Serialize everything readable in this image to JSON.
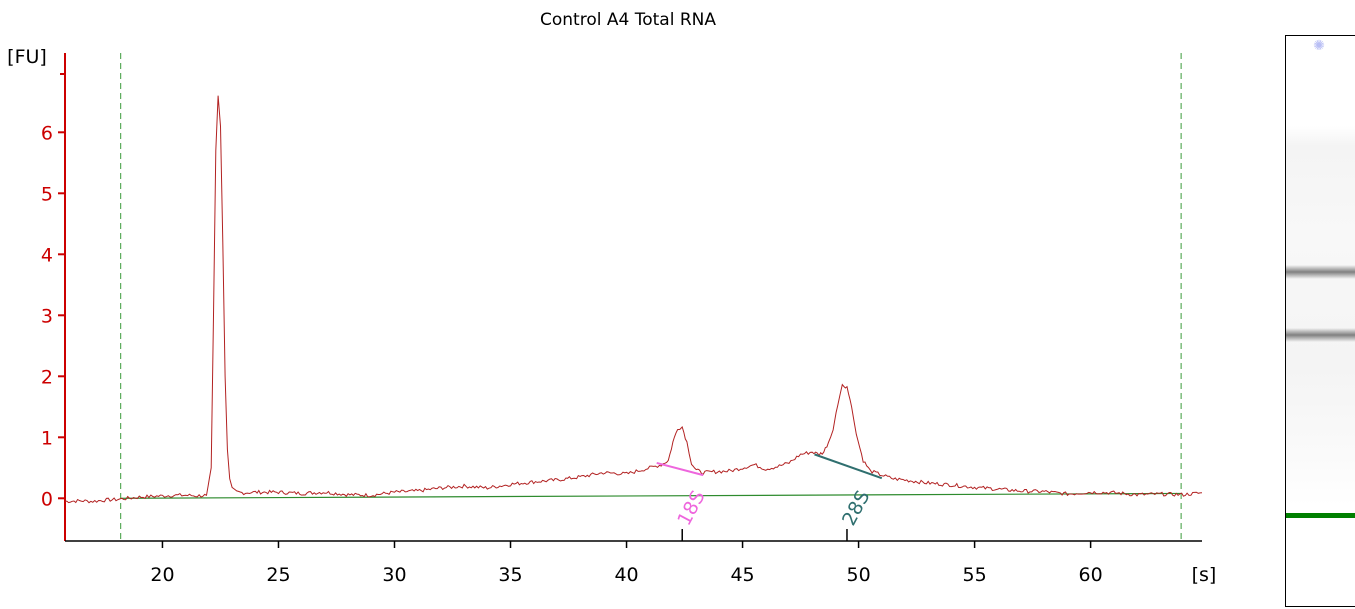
{
  "colors": {
    "axis": "#cc0000",
    "trace": "#b22222",
    "baseline": "#2e8b2e",
    "marker_lines": "#3a9a3a",
    "peak_18S": "#ee66dd",
    "peak_28S": "#2f6f6f",
    "gel_band": "#808080",
    "gel_marker": "#008000"
  },
  "chart_data": {
    "type": "line",
    "title": "Control A4 Total RNA",
    "ylabel": "[FU]",
    "xlabel": "[s]",
    "xlim": [
      15.8,
      64.8
    ],
    "ylim": [
      -0.7,
      7.3
    ],
    "xticks": [
      20,
      25,
      30,
      35,
      40,
      45,
      50,
      55,
      60
    ],
    "yticks": [
      0,
      1,
      2,
      3,
      4,
      5,
      6
    ],
    "grid": false,
    "marker_lines_x": [
      18.2,
      63.9
    ],
    "baseline": {
      "x": [
        18.2,
        63.9
      ],
      "y": [
        0.0,
        0.08
      ]
    },
    "series": [
      {
        "x": [
          15.8,
          16.5,
          17.0,
          17.5,
          18.0,
          18.5,
          19.0,
          19.5,
          20.0,
          20.5,
          21.0,
          21.5,
          21.9,
          22.1,
          22.2,
          22.3,
          22.4,
          22.5,
          22.6,
          22.7,
          22.8,
          22.9,
          23.0,
          23.2,
          23.5,
          24.0,
          25.0,
          26.0,
          27.0,
          28.0,
          29.0,
          30.0,
          31.0,
          32.0,
          33.0,
          34.0,
          35.0,
          36.0,
          37.0,
          38.0,
          39.0,
          40.0,
          40.5,
          41.0,
          41.5,
          41.8,
          42.0,
          42.2,
          42.4,
          42.6,
          42.8,
          43.0,
          43.3,
          43.6,
          44.0,
          44.5,
          45.0,
          45.5,
          46.0,
          46.5,
          47.0,
          47.5,
          48.0,
          48.3,
          48.5,
          48.7,
          48.9,
          49.1,
          49.3,
          49.5,
          49.7,
          49.9,
          50.2,
          50.5,
          51.0,
          51.5,
          52.0,
          53.0,
          54.0,
          55.0,
          56.0,
          57.0,
          58.0,
          59.0,
          60.0,
          61.0,
          62.0,
          63.0,
          64.0,
          64.8
        ],
        "y": [
          -0.05,
          -0.04,
          -0.05,
          -0.03,
          -0.02,
          0.0,
          0.02,
          0.03,
          0.04,
          0.05,
          0.05,
          0.04,
          0.05,
          0.5,
          3.0,
          5.7,
          6.6,
          6.1,
          4.2,
          2.0,
          0.8,
          0.3,
          0.15,
          0.1,
          0.09,
          0.1,
          0.1,
          0.08,
          0.1,
          0.06,
          0.05,
          0.1,
          0.12,
          0.17,
          0.2,
          0.17,
          0.23,
          0.27,
          0.3,
          0.35,
          0.42,
          0.4,
          0.45,
          0.5,
          0.55,
          0.62,
          0.92,
          1.15,
          1.17,
          0.92,
          0.58,
          0.46,
          0.42,
          0.43,
          0.44,
          0.45,
          0.5,
          0.55,
          0.48,
          0.52,
          0.58,
          0.72,
          0.76,
          0.72,
          0.76,
          0.92,
          1.12,
          1.55,
          1.85,
          1.83,
          1.5,
          1.05,
          0.62,
          0.45,
          0.38,
          0.32,
          0.3,
          0.25,
          0.22,
          0.18,
          0.15,
          0.12,
          0.11,
          0.07,
          0.1,
          0.09,
          0.06,
          0.07,
          0.06,
          0.09
        ]
      }
    ],
    "annotations": [
      {
        "text": "18S",
        "x": 42.4,
        "peak_line": {
          "x": [
            41.3,
            43.3
          ],
          "y": [
            0.58,
            0.38
          ]
        }
      },
      {
        "text": "28S",
        "x": 49.5,
        "peak_line": {
          "x": [
            48.1,
            51.0
          ],
          "y": [
            0.72,
            0.33
          ]
        }
      }
    ]
  },
  "gel": {
    "bands_fraction": [
      0.412,
      0.522
    ],
    "marker_fraction": 0.838
  }
}
